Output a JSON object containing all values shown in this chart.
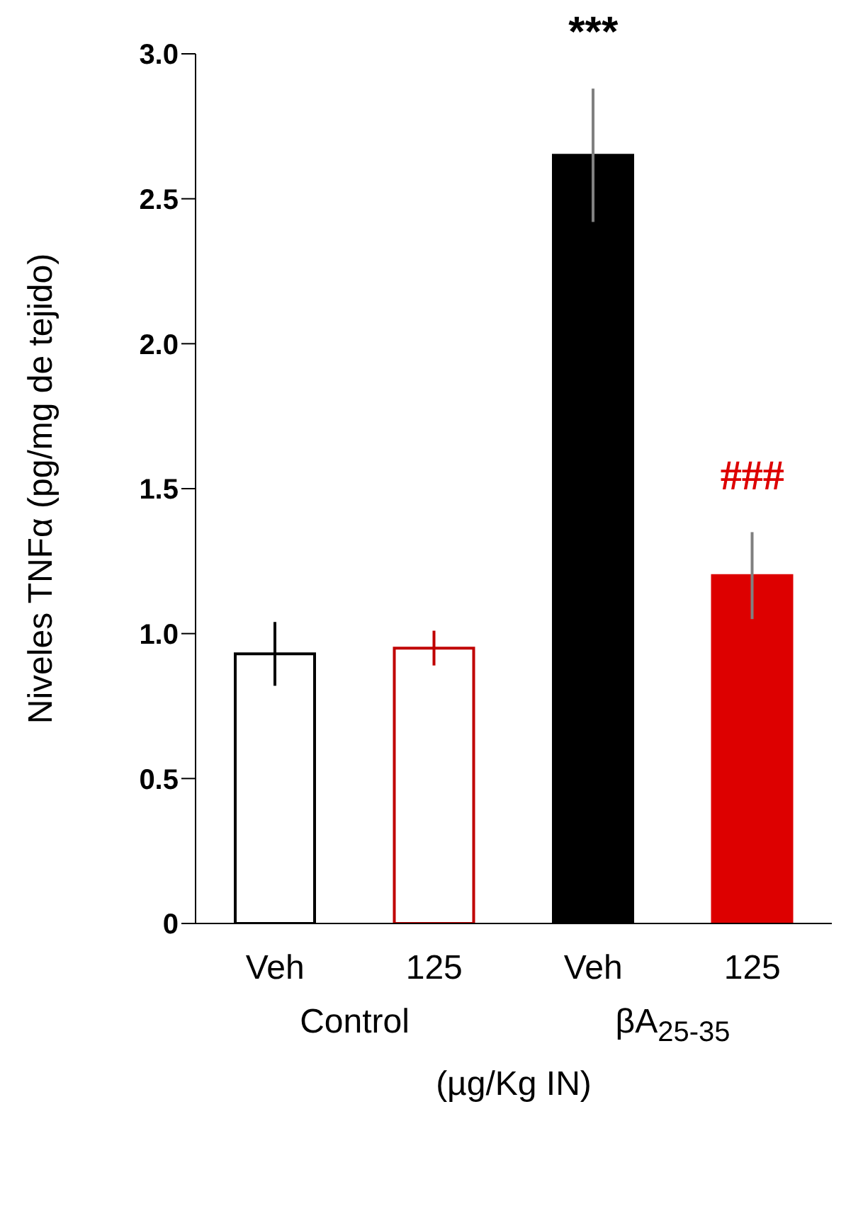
{
  "chart_data": {
    "type": "bar",
    "ylabel": "Niveles TNFα (pg/mg de tejido)",
    "xlabel": "(µg/Kg IN)",
    "categories": [
      "Veh",
      "125",
      "Veh",
      "125"
    ],
    "values": [
      0.93,
      0.95,
      2.65,
      1.2
    ],
    "errors": [
      0.11,
      0.06,
      0.23,
      0.15
    ],
    "colors": [
      "#ffffff",
      "#ffffff",
      "#000000",
      "#dd0000"
    ],
    "ylim": [
      0,
      3
    ],
    "yticks": [
      0,
      0.5,
      {
        "value": 1,
        "label": "1.0"
      },
      1.5,
      {
        "value": 2,
        "label": "2.0"
      },
      2.5,
      {
        "value": 3,
        "label": "3.0"
      }
    ],
    "grid": false,
    "legend": false,
    "annotations": [
      "***",
      "###",
      "Control",
      "βA$_{25-35}$"
    ]
  }
}
